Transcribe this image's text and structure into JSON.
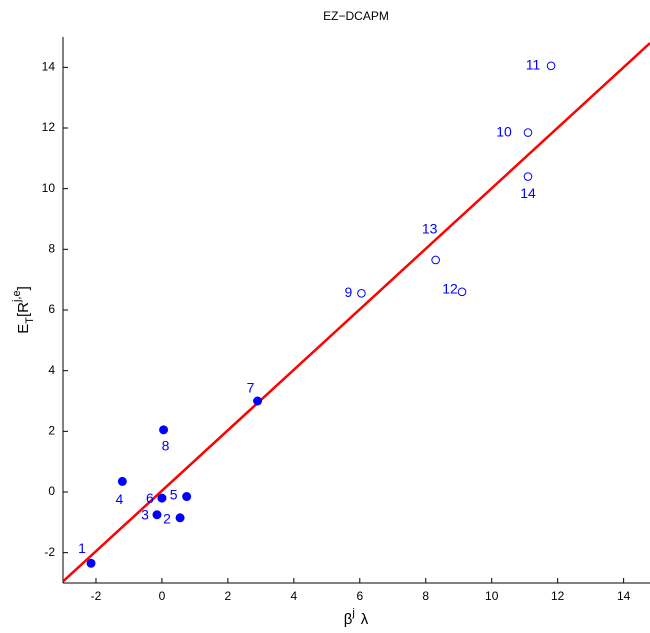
{
  "chart_data": {
    "type": "scatter",
    "title": "EZ−DCAPM",
    "xlabel_parts": [
      "β",
      "j",
      "λ"
    ],
    "ylabel_parts": [
      "E",
      "T",
      "[R",
      "j,e",
      "]"
    ],
    "xlim": [
      -3,
      14.8
    ],
    "ylim": [
      -3,
      15
    ],
    "xticks": [
      -2,
      0,
      2,
      4,
      6,
      8,
      10,
      12,
      14
    ],
    "yticks": [
      -2,
      0,
      2,
      4,
      6,
      8,
      10,
      12,
      14
    ],
    "series": [
      {
        "marker": "filled",
        "color": "#0000ff",
        "labels": [
          "1",
          "2",
          "3",
          "4",
          "5",
          "6",
          "7",
          "8"
        ],
        "x": [
          -2.15,
          0.55,
          -0.15,
          -1.2,
          0.75,
          0.0,
          2.9,
          0.05
        ],
        "values": [
          -2.35,
          -0.85,
          -0.75,
          0.35,
          -0.15,
          -0.2,
          3.0,
          2.05
        ]
      },
      {
        "marker": "open",
        "color": "#0000ff",
        "labels": [
          "9",
          "10",
          "11",
          "12",
          "13",
          "14"
        ],
        "x": [
          6.05,
          11.1,
          11.8,
          9.1,
          8.3,
          11.1
        ],
        "values": [
          6.55,
          11.85,
          14.05,
          6.6,
          7.65,
          10.4
        ]
      }
    ],
    "fit_line": {
      "color": "#ff0000",
      "x": [
        -3,
        14.8
      ],
      "values": [
        -2.95,
        14.8
      ]
    }
  }
}
